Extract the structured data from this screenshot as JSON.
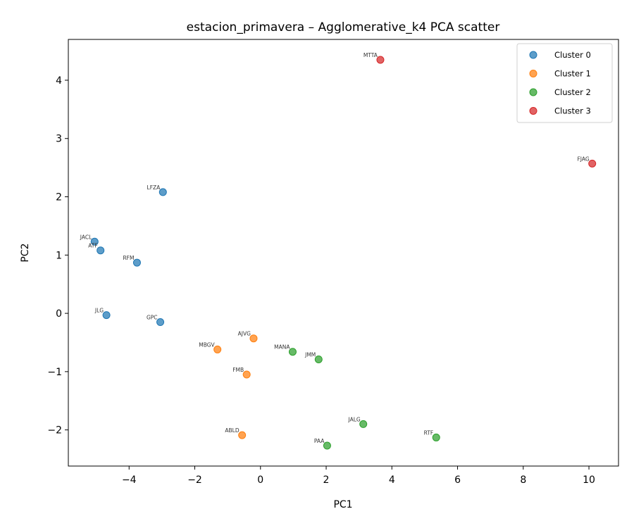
{
  "chart_data": {
    "type": "scatter",
    "title": "estacion_primavera – Agglomerative_k4 PCA scatter",
    "xlabel": "PC1",
    "ylabel": "PC2",
    "xlim": [
      -5.85,
      10.9
    ],
    "ylim": [
      -2.62,
      4.7
    ],
    "xticks": [
      -4,
      -2,
      0,
      2,
      4,
      6,
      8,
      10
    ],
    "yticks": [
      -2,
      -1,
      0,
      1,
      2,
      3,
      4
    ],
    "grid": false,
    "legend_position": "upper right",
    "series": [
      {
        "name": "Cluster 0",
        "color": "#1f77b4",
        "points": [
          {
            "label": "JACL",
            "x": -5.05,
            "y": 1.23
          },
          {
            "label": "ATF",
            "x": -4.87,
            "y": 1.08
          },
          {
            "label": "JLG",
            "x": -4.69,
            "y": -0.03
          },
          {
            "label": "RFM",
            "x": -3.76,
            "y": 0.87
          },
          {
            "label": "LFZA",
            "x": -2.97,
            "y": 2.08
          },
          {
            "label": "GPC",
            "x": -3.05,
            "y": -0.15
          }
        ]
      },
      {
        "name": "Cluster 1",
        "color": "#ff7f0e",
        "points": [
          {
            "label": "AJVG",
            "x": -0.21,
            "y": -0.43
          },
          {
            "label": "MBGV",
            "x": -1.31,
            "y": -0.62
          },
          {
            "label": "FMB",
            "x": -0.42,
            "y": -1.05
          },
          {
            "label": "ABLD",
            "x": -0.56,
            "y": -2.09
          }
        ]
      },
      {
        "name": "Cluster 2",
        "color": "#2ca02c",
        "points": [
          {
            "label": "MANA",
            "x": 0.98,
            "y": -0.66
          },
          {
            "label": "JMM",
            "x": 1.77,
            "y": -0.79
          },
          {
            "label": "JALG",
            "x": 3.13,
            "y": -1.9
          },
          {
            "label": "PAA",
            "x": 2.03,
            "y": -2.27
          },
          {
            "label": "RTF",
            "x": 5.35,
            "y": -2.13
          }
        ]
      },
      {
        "name": "Cluster 3",
        "color": "#d62728",
        "points": [
          {
            "label": "MTTA",
            "x": 3.65,
            "y": 4.35
          },
          {
            "label": "FJAG",
            "x": 10.1,
            "y": 2.57
          }
        ]
      }
    ]
  }
}
